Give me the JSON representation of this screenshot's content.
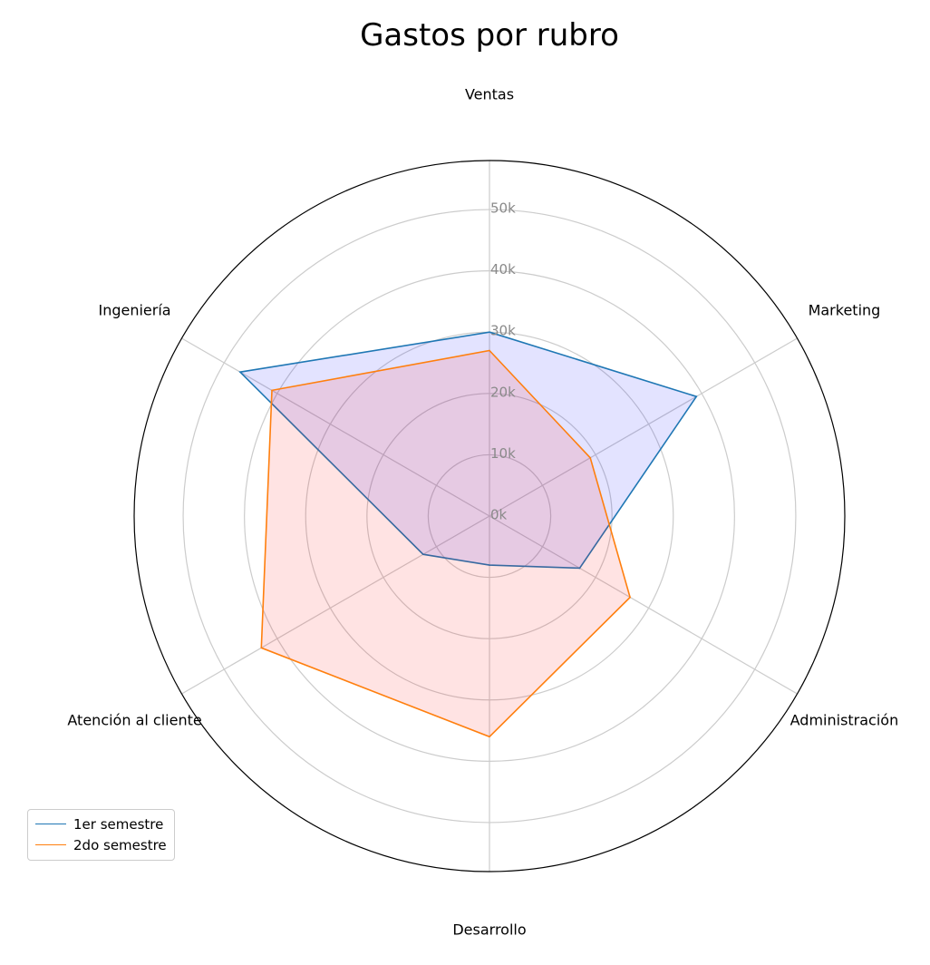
{
  "chart_data": {
    "type": "radar",
    "title": "Gastos por rubro",
    "categories": [
      "Ventas",
      "Marketing",
      "Administración",
      "Desarrollo",
      "Atención al cliente",
      "Ingeniería"
    ],
    "rlim": [
      0,
      58000
    ],
    "ticks": [
      0,
      10000,
      20000,
      30000,
      40000,
      50000
    ],
    "tick_labels": [
      "0k",
      "10k",
      "20k",
      "30k",
      "40k",
      "50k"
    ],
    "grid": true,
    "legend_position": "lower-left",
    "series": [
      {
        "name": "1er semestre",
        "values": [
          30000,
          39000,
          17000,
          8000,
          12500,
          47000
        ],
        "color": "#1f77b4",
        "fill": "#0000ff",
        "fill_opacity": 0.11
      },
      {
        "name": "2do semestre",
        "values": [
          27000,
          19000,
          26500,
          36000,
          43000,
          41000
        ],
        "color": "#ff7f0e",
        "fill": "#ff0000",
        "fill_opacity": 0.11
      }
    ]
  }
}
